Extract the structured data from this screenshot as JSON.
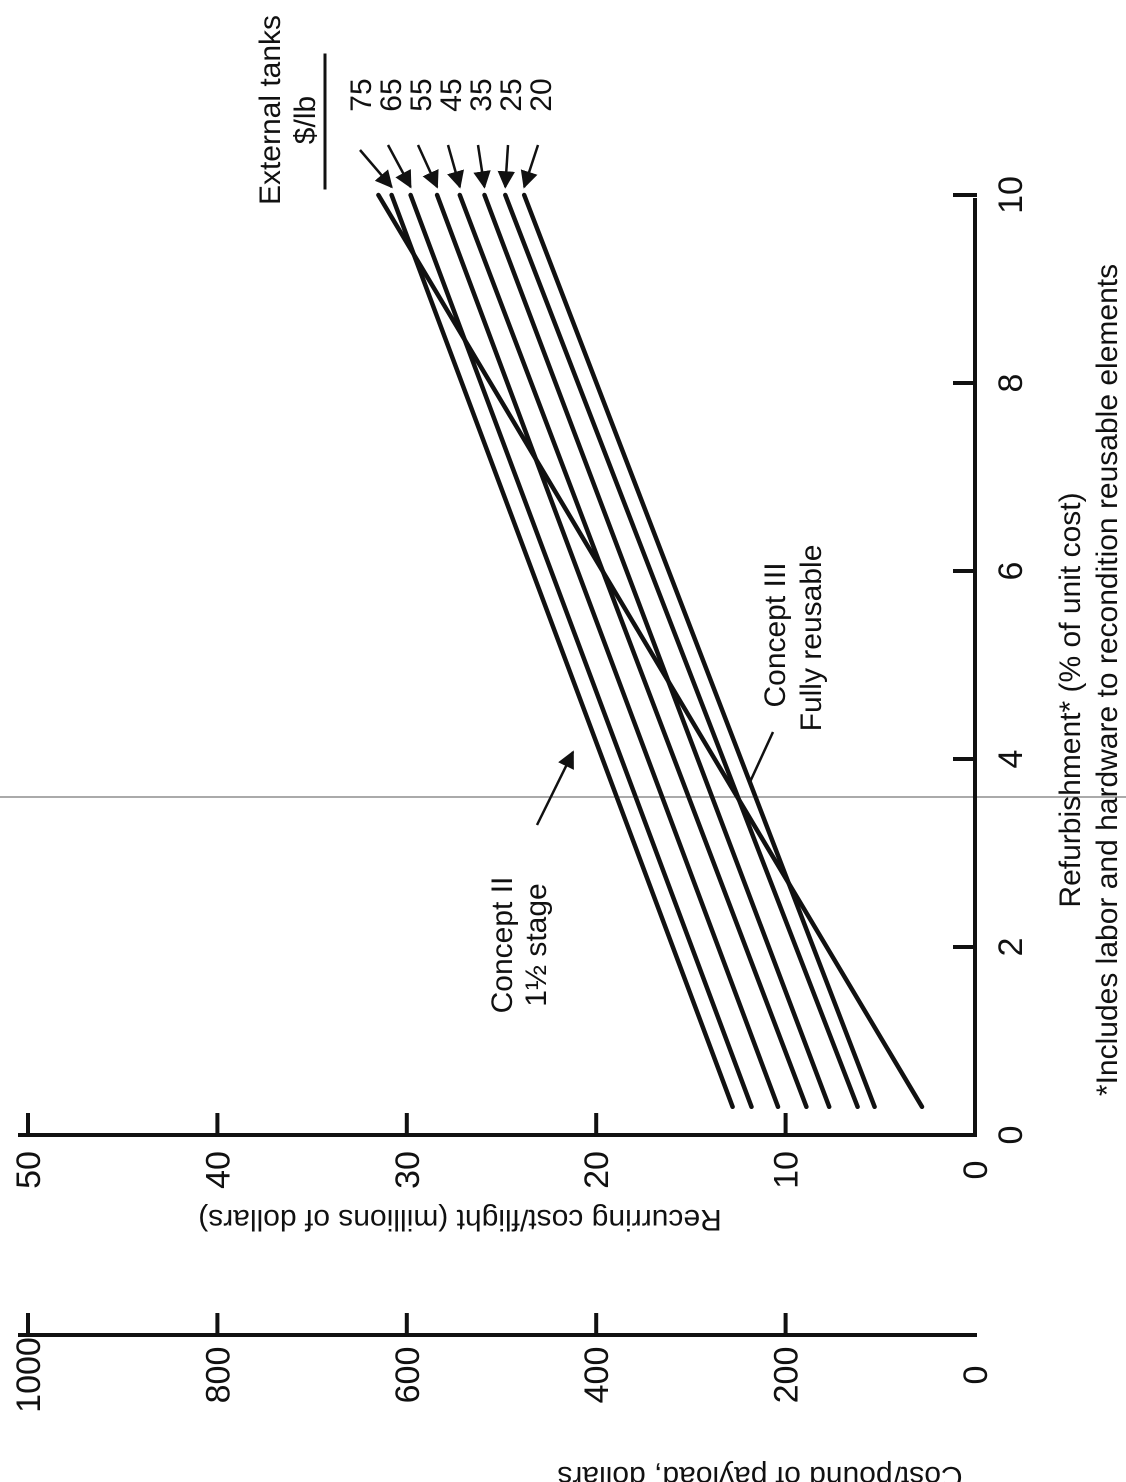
{
  "chart_data": {
    "type": "line",
    "orientation": "rotated 90 degrees counter-clockwise",
    "x_axis": {
      "label": "Refurbishment* (% of unit cost)",
      "ticks": [
        "0",
        "2",
        "4",
        "6",
        "8",
        "10"
      ],
      "range": [
        0,
        10
      ]
    },
    "y_axis_primary": {
      "label": "Recurring cost/flight (millions of dollars)",
      "ticks": [
        "0",
        "10",
        "20",
        "30",
        "40",
        "50"
      ],
      "range": [
        0,
        50
      ]
    },
    "y_axis_secondary": {
      "label": "Cost/pound of payload, dollars",
      "ticks": [
        "0",
        "200",
        "400",
        "600",
        "800",
        "1000"
      ],
      "range": [
        0,
        1000
      ]
    },
    "footnote": "*Includes labor and hardware to recondition reusable elements",
    "legend_title": "External tanks",
    "legend_unit": "$/lb",
    "annotations": {
      "concept2_line1": "Concept II",
      "concept2_line2": "1½ stage",
      "concept3_line1": "Concept III",
      "concept3_line2": "Fully reusable"
    },
    "series": [
      {
        "name": "75",
        "x": [
          0.3,
          10
        ],
        "y": [
          12.8,
          30.8
        ]
      },
      {
        "name": "65",
        "x": [
          0.3,
          10
        ],
        "y": [
          11.8,
          29.8
        ]
      },
      {
        "name": "55",
        "x": [
          0.3,
          10
        ],
        "y": [
          10.4,
          28.4
        ]
      },
      {
        "name": "45",
        "x": [
          0.3,
          10
        ],
        "y": [
          8.9,
          27.2
        ]
      },
      {
        "name": "35",
        "x": [
          0.3,
          10
        ],
        "y": [
          7.7,
          25.9
        ]
      },
      {
        "name": "25",
        "x": [
          0.3,
          10
        ],
        "y": [
          6.2,
          24.8
        ]
      },
      {
        "name": "20",
        "x": [
          0.3,
          10
        ],
        "y": [
          5.3,
          23.8
        ]
      },
      {
        "name": "Concept III",
        "x": [
          0.3,
          10
        ],
        "y": [
          2.8,
          31.5
        ]
      }
    ]
  }
}
